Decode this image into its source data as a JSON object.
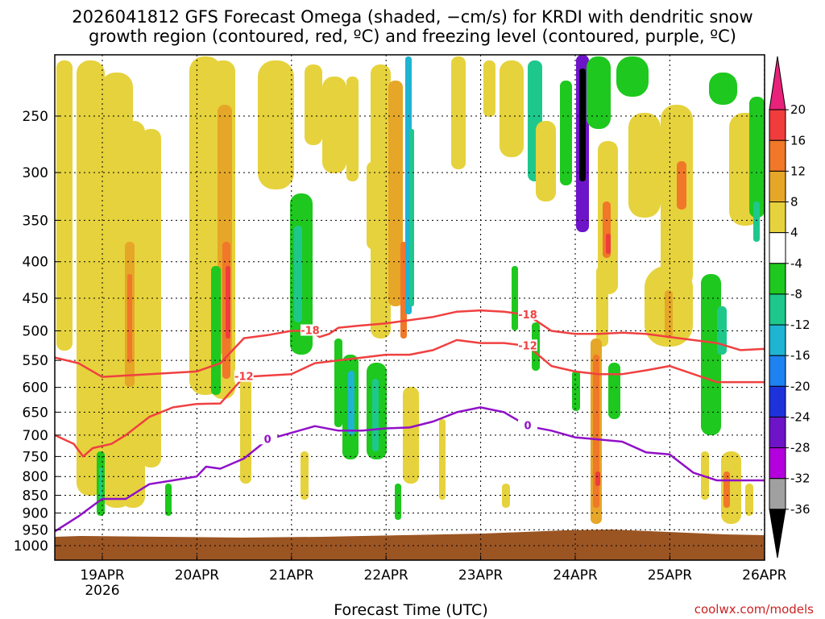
{
  "title": {
    "line1": "2026041812 GFS Forecast Omega (shaded, −cm/s) for KRDI with dendritic snow",
    "line2": "growth region (contoured, red, ºC) and freezing level (contoured, purple, ºC)"
  },
  "xlabel": "Forecast Time (UTC)",
  "credit": "coolwx.com/models",
  "chart_data": {
    "type": "heatmap",
    "x_ticks": [
      "19APR",
      "20APR",
      "21APR",
      "22APR",
      "23APR",
      "24APR",
      "25APR",
      "26APR"
    ],
    "x_year": "2026",
    "x_range": [
      "18APR 12Z",
      "26APR 00Z"
    ],
    "y_ticks": [
      250,
      300,
      350,
      400,
      450,
      500,
      550,
      600,
      650,
      700,
      750,
      800,
      850,
      900,
      950,
      1000
    ],
    "y_range": [
      1000,
      200
    ],
    "y_scale": "log-pressure",
    "grid": true,
    "colorbar": {
      "levels": [
        20,
        16,
        12,
        8,
        4,
        -4,
        -8,
        -12,
        -16,
        -20,
        -24,
        -28,
        -32,
        -36
      ],
      "colors": [
        "#e8227a",
        "#f03c3c",
        "#f07828",
        "#e6a628",
        "#e6d23c",
        "#ffffff",
        "#1ec81e",
        "#1ec88c",
        "#1eb4d2",
        "#1e82f0",
        "#1e32dc",
        "#6e14c8",
        "#b400dc",
        "#a0a0a0",
        "#000000"
      ]
    },
    "contours": [
      {
        "label": "-18",
        "color": "#f04040",
        "points": [
          [
            0,
            545
          ],
          [
            0.25,
            555
          ],
          [
            0.5,
            580
          ],
          [
            1.0,
            575
          ],
          [
            1.5,
            570
          ],
          [
            1.75,
            555
          ],
          [
            2.0,
            512
          ],
          [
            2.25,
            507
          ],
          [
            2.5,
            500
          ],
          [
            2.7,
            500
          ],
          [
            2.8,
            510
          ],
          [
            2.9,
            505
          ],
          [
            3.0,
            495
          ],
          [
            3.2,
            492
          ],
          [
            3.5,
            488
          ],
          [
            4.0,
            478
          ],
          [
            4.25,
            470
          ],
          [
            4.5,
            468
          ],
          [
            4.75,
            470
          ],
          [
            5.0,
            475
          ],
          [
            5.25,
            500
          ],
          [
            5.5,
            505
          ],
          [
            5.75,
            505
          ],
          [
            6.0,
            503
          ],
          [
            6.25,
            505
          ],
          [
            6.5,
            510
          ],
          [
            7.0,
            520
          ],
          [
            7.25,
            532
          ],
          [
            7.5,
            530
          ]
        ]
      },
      {
        "label": "-12",
        "color": "#f04040",
        "points": [
          [
            0,
            700
          ],
          [
            0.2,
            720
          ],
          [
            0.3,
            750
          ],
          [
            0.4,
            730
          ],
          [
            0.6,
            720
          ],
          [
            0.75,
            700
          ],
          [
            1.0,
            660
          ],
          [
            1.25,
            640
          ],
          [
            1.5,
            633
          ],
          [
            1.75,
            632
          ],
          [
            2.0,
            580
          ],
          [
            2.5,
            575
          ],
          [
            2.75,
            555
          ],
          [
            3.0,
            550
          ],
          [
            3.5,
            540
          ],
          [
            3.75,
            540
          ],
          [
            4.0,
            532
          ],
          [
            4.25,
            515
          ],
          [
            4.5,
            520
          ],
          [
            4.75,
            520
          ],
          [
            5.0,
            525
          ],
          [
            5.25,
            560
          ],
          [
            5.5,
            570
          ],
          [
            5.75,
            575
          ],
          [
            6.0,
            575
          ],
          [
            6.25,
            568
          ],
          [
            6.5,
            560
          ],
          [
            7.0,
            590
          ],
          [
            7.25,
            590
          ],
          [
            7.5,
            590
          ]
        ]
      },
      {
        "label": "0",
        "color": "#9010c8",
        "points": [
          [
            0,
            955
          ],
          [
            0.25,
            910
          ],
          [
            0.5,
            860
          ],
          [
            0.75,
            860
          ],
          [
            1.0,
            820
          ],
          [
            1.25,
            810
          ],
          [
            1.5,
            800
          ],
          [
            1.6,
            775
          ],
          [
            1.75,
            780
          ],
          [
            2.0,
            755
          ],
          [
            2.25,
            710
          ],
          [
            2.5,
            695
          ],
          [
            2.75,
            680
          ],
          [
            3.0,
            690
          ],
          [
            3.25,
            690
          ],
          [
            3.5,
            685
          ],
          [
            3.75,
            683
          ],
          [
            4.0,
            670
          ],
          [
            4.25,
            650
          ],
          [
            4.5,
            640
          ],
          [
            4.75,
            650
          ],
          [
            5.0,
            680
          ],
          [
            5.25,
            690
          ],
          [
            5.5,
            705
          ],
          [
            5.75,
            710
          ],
          [
            6.0,
            715
          ],
          [
            6.25,
            740
          ],
          [
            6.5,
            745
          ],
          [
            6.75,
            790
          ],
          [
            7.0,
            810
          ],
          [
            7.25,
            810
          ],
          [
            7.5,
            810
          ]
        ]
      }
    ]
  }
}
